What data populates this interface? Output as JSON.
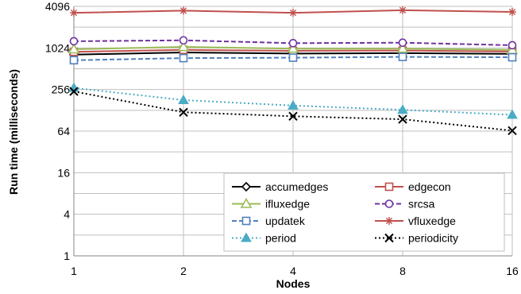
{
  "chart_data": {
    "type": "line",
    "title": "",
    "xlabel": "Nodes",
    "ylabel": "Run time (milliseconds)",
    "x": [
      1,
      2,
      4,
      8,
      16
    ],
    "x_tick_labels": [
      "1",
      "2",
      "4",
      "8",
      "16"
    ],
    "y_scale": "log2",
    "ylim": [
      1,
      4096
    ],
    "y_ticks": [
      1,
      4,
      16,
      64,
      256,
      1024,
      4096
    ],
    "y_tick_labels": [
      "1",
      "4",
      "16",
      "64",
      "256",
      "1024",
      "4096"
    ],
    "grid": true,
    "legend_position": "bottom-right",
    "series": [
      {
        "name": "accumedges",
        "values": [
          820,
          880,
          850,
          860,
          840
        ],
        "color": "#000000",
        "dash": "",
        "marker": "diamond"
      },
      {
        "name": "edgecon",
        "values": [
          900,
          960,
          930,
          940,
          910
        ],
        "color": "#c0504d",
        "dash": "",
        "marker": "square"
      },
      {
        "name": "ifluxedge",
        "values": [
          980,
          1060,
          1000,
          1000,
          960
        ],
        "color": "#9bbb59",
        "dash": "",
        "marker": "triangle"
      },
      {
        "name": "srcsa",
        "values": [
          1280,
          1320,
          1200,
          1220,
          1120
        ],
        "color": "#7030a0",
        "dash": "6,3",
        "marker": "circle"
      },
      {
        "name": "updatek",
        "values": [
          680,
          730,
          740,
          760,
          750
        ],
        "color": "#4f81bd",
        "dash": "6,3",
        "marker": "square"
      },
      {
        "name": "vfluxedge",
        "values": [
          3300,
          3550,
          3300,
          3600,
          3400
        ],
        "color": "#c0504d",
        "dash": "",
        "marker": "star"
      },
      {
        "name": "period",
        "values": [
          270,
          180,
          150,
          130,
          110
        ],
        "color": "#4bacc6",
        "dash": "2,3",
        "marker": "filled-triangle"
      },
      {
        "name": "periodicity",
        "values": [
          240,
          120,
          105,
          95,
          65
        ],
        "color": "#000000",
        "dash": "2,3",
        "marker": "x"
      }
    ]
  }
}
